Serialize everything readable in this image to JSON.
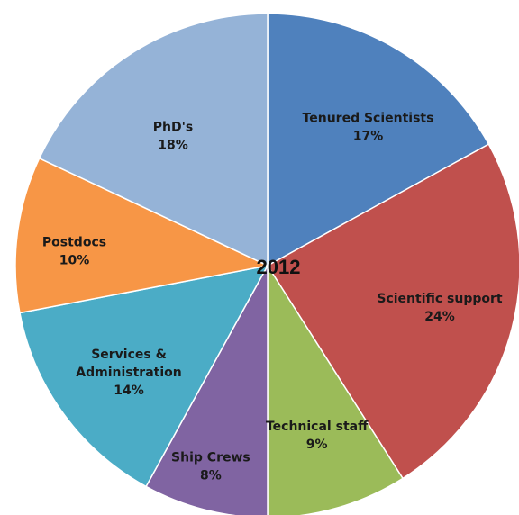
{
  "chart_data": {
    "type": "pie",
    "title": "2012",
    "start_angle_deg": 0,
    "direction": "clockwise",
    "slices": [
      {
        "label": "Tenured Scientists",
        "label_lines": [
          "Tenured Scientists"
        ],
        "pct_text": "17%",
        "value": 17,
        "color": "#4f81bd"
      },
      {
        "label": "Scientific support",
        "label_lines": [
          "Scientific support"
        ],
        "pct_text": "24%",
        "value": 24,
        "color": "#c0504d"
      },
      {
        "label": "Technical staff",
        "label_lines": [
          "Technical staff"
        ],
        "pct_text": "9%",
        "value": 9,
        "color": "#9bbb59"
      },
      {
        "label": "Ship Crews",
        "label_lines": [
          "Ship Crews"
        ],
        "pct_text": "8%",
        "value": 8,
        "color": "#8064a2"
      },
      {
        "label": "Services & Administration",
        "label_lines": [
          "Services &",
          "Administration"
        ],
        "pct_text": "14%",
        "value": 14,
        "color": "#4bacc6"
      },
      {
        "label": "Postdocs",
        "label_lines": [
          "Postdocs"
        ],
        "pct_text": "10%",
        "value": 10,
        "color": "#f79646"
      },
      {
        "label": "PhD's",
        "label_lines": [
          "PhD's"
        ],
        "pct_text": "18%",
        "value": 18,
        "color": "#95b3d7"
      }
    ]
  }
}
